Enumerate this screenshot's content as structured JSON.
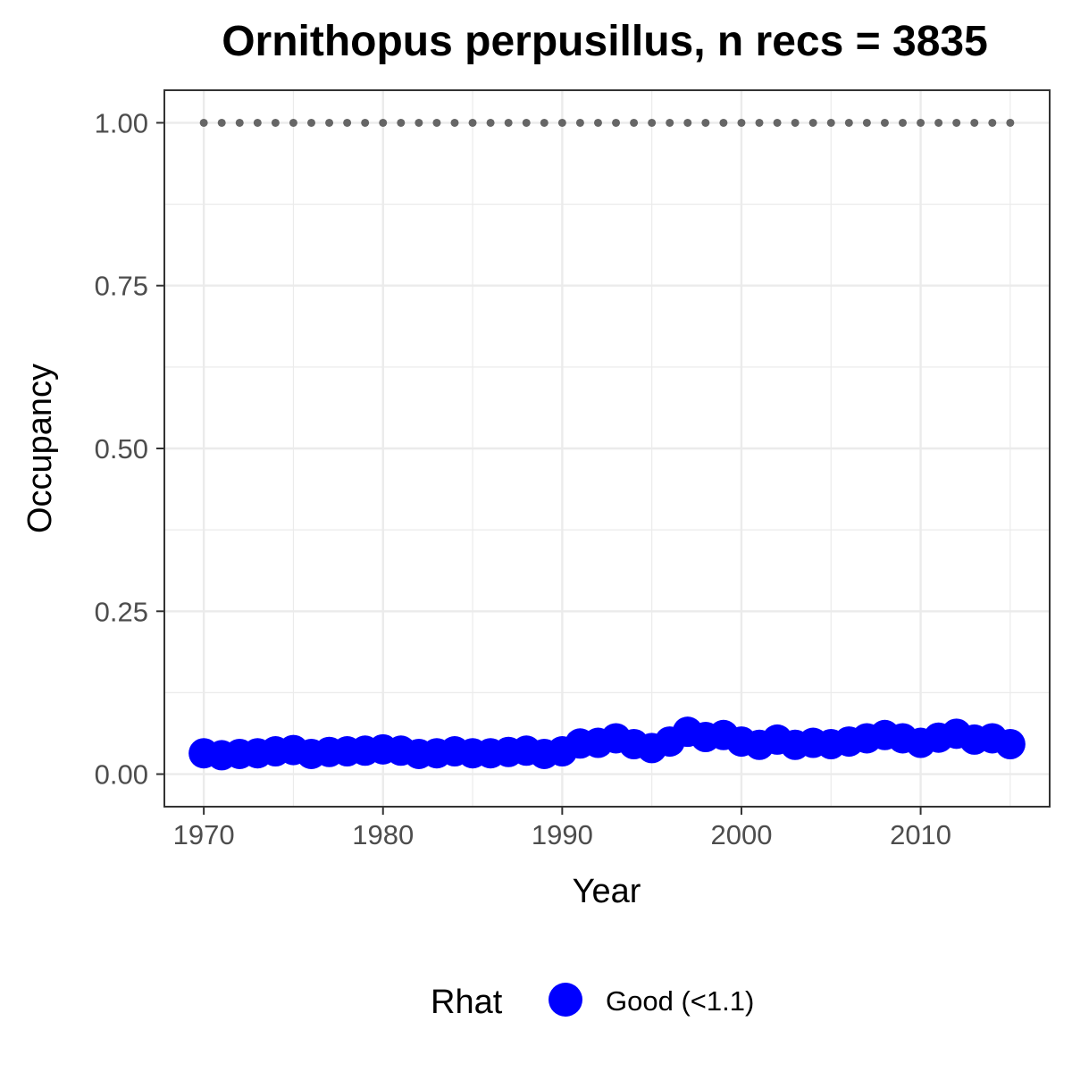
{
  "chart_data": {
    "type": "scatter",
    "title": "Ornithopus perpusillus, n recs = 3835",
    "xlabel": "Year",
    "ylabel": "Occupancy",
    "xlim": [
      1967.8,
      2017.2
    ],
    "ylim": [
      -0.05,
      1.05
    ],
    "x_ticks": [
      1970,
      1980,
      1990,
      2000,
      2010
    ],
    "x_tick_labels": [
      "1970",
      "1980",
      "1990",
      "2000",
      "2010"
    ],
    "y_ticks": [
      0,
      0.25,
      0.5,
      0.75,
      1
    ],
    "y_tick_labels": [
      "0.00",
      "0.25",
      "0.50",
      "0.75",
      "1.00"
    ],
    "grid": true,
    "legend": {
      "title": "Rhat",
      "placement": "bottom",
      "entries": [
        "Good (<1.1)"
      ]
    },
    "colors": {
      "points": "#0000ff",
      "reference": "#666666",
      "grid": "#ebebeb",
      "border": "#333333"
    },
    "series": [
      {
        "name": "Good (<1.1)",
        "x": [
          1970,
          1971,
          1972,
          1973,
          1974,
          1975,
          1976,
          1977,
          1978,
          1979,
          1980,
          1981,
          1982,
          1983,
          1984,
          1985,
          1986,
          1987,
          1988,
          1989,
          1990,
          1991,
          1992,
          1993,
          1994,
          1995,
          1996,
          1997,
          1998,
          1999,
          2000,
          2001,
          2002,
          2003,
          2004,
          2005,
          2006,
          2007,
          2008,
          2009,
          2010,
          2011,
          2012,
          2013,
          2014,
          2015
        ],
        "values": [
          0.032,
          0.029,
          0.031,
          0.032,
          0.035,
          0.037,
          0.031,
          0.034,
          0.035,
          0.036,
          0.038,
          0.036,
          0.031,
          0.032,
          0.035,
          0.032,
          0.032,
          0.034,
          0.036,
          0.031,
          0.035,
          0.047,
          0.048,
          0.055,
          0.046,
          0.04,
          0.05,
          0.065,
          0.057,
          0.06,
          0.05,
          0.045,
          0.053,
          0.045,
          0.048,
          0.046,
          0.05,
          0.055,
          0.06,
          0.055,
          0.048,
          0.056,
          0.062,
          0.053,
          0.055,
          0.046
        ]
      },
      {
        "x": [
          1970,
          1971,
          1972,
          1973,
          1974,
          1975,
          1976,
          1977,
          1978,
          1979,
          1980,
          1981,
          1982,
          1983,
          1984,
          1985,
          1986,
          1987,
          1988,
          1989,
          1990,
          1991,
          1992,
          1993,
          1994,
          1995,
          1996,
          1997,
          1998,
          1999,
          2000,
          2001,
          2002,
          2003,
          2004,
          2005,
          2006,
          2007,
          2008,
          2009,
          2010,
          2011,
          2012,
          2013,
          2014,
          2015
        ],
        "values": [
          1,
          1,
          1,
          1,
          1,
          1,
          1,
          1,
          1,
          1,
          1,
          1,
          1,
          1,
          1,
          1,
          1,
          1,
          1,
          1,
          1,
          1,
          1,
          1,
          1,
          1,
          1,
          1,
          1,
          1,
          1,
          1,
          1,
          1,
          1,
          1,
          1,
          1,
          1,
          1,
          1,
          1,
          1,
          1,
          1,
          1
        ]
      }
    ]
  }
}
